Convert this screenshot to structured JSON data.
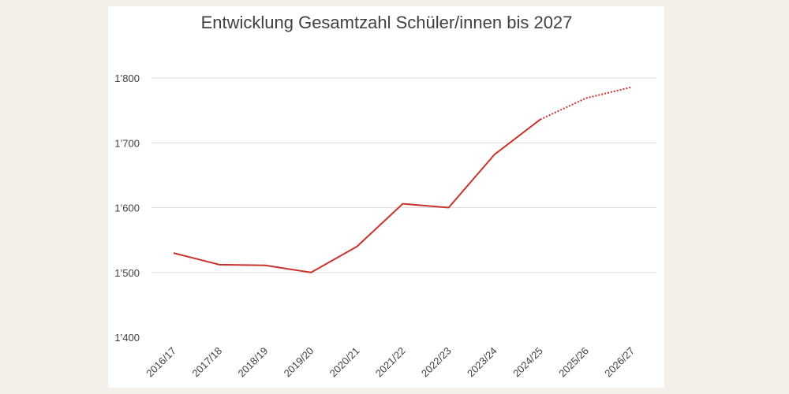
{
  "chart_data": {
    "type": "line",
    "title": "Entwicklung Gesamtzahl Schüler/innen bis 2027",
    "xlabel": "",
    "ylabel": "",
    "categories": [
      "2016/17",
      "2017/18",
      "2018/19",
      "2019/20",
      "2020/21",
      "2021/22",
      "2022/23",
      "2023/24",
      "2024/25",
      "2025/26",
      "2026/27"
    ],
    "series": [
      {
        "values": [
          1530,
          1512,
          1511,
          1500,
          1540,
          1606,
          1600,
          1682,
          1736,
          null,
          null
        ],
        "style": "solid"
      },
      {
        "values": [
          null,
          null,
          null,
          null,
          null,
          null,
          null,
          null,
          1736,
          1769,
          1786
        ],
        "style": "dotted"
      }
    ],
    "ylim": [
      1400,
      1800
    ],
    "yticks": [
      1400,
      1500,
      1600,
      1700,
      1800
    ],
    "ytick_labels": [
      "1’400",
      "1’500",
      "1’600",
      "1’700",
      "1’800"
    ],
    "line_color": "#c8332b",
    "grid": "horizontal",
    "legend": "none"
  }
}
